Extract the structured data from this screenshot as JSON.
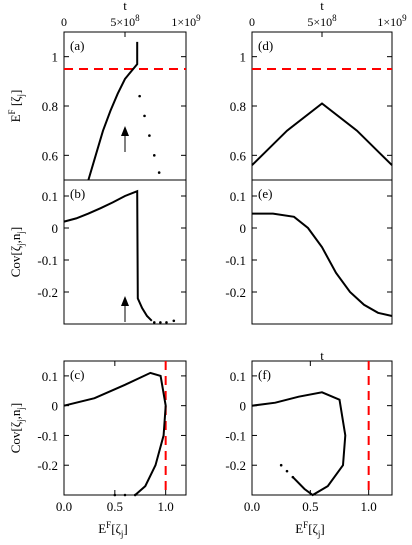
{
  "chart_data": [
    {
      "panel_label": "(a)",
      "type": "line",
      "xlabel_top": "t",
      "top_ticks": [
        0,
        "5×10^8",
        "1×10^9"
      ],
      "ylabel": "E^F[ζ_j]",
      "yticks": [
        0.6,
        0.8,
        1
      ],
      "ylim": [
        0.5,
        1.1
      ],
      "xlim": [
        0,
        1000000000
      ],
      "reference_line": {
        "y": 0.95,
        "color": "#ff0000",
        "style": "dashed"
      },
      "annotations": [
        "up-arrow at t = 5×10^8"
      ],
      "series": [
        {
          "points": [
            [
              200000000,
              0.5
            ],
            [
              260000000,
              0.6
            ],
            [
              320000000,
              0.7
            ],
            [
              380000000,
              0.78
            ],
            [
              440000000,
              0.85
            ],
            [
              500000000,
              0.91
            ],
            [
              600000000,
              0.97
            ],
            [
              600000000,
              1.06
            ]
          ]
        },
        {
          "style": "dotted",
          "points": [
            [
              620000000,
              0.84
            ],
            [
              660000000,
              0.76
            ],
            [
              700000000,
              0.68
            ],
            [
              740000000,
              0.6
            ],
            [
              780000000,
              0.53
            ]
          ]
        }
      ]
    },
    {
      "panel_label": "(b)",
      "type": "line",
      "ylabel": "Cov[ζ_j,n_j]",
      "yticks": [
        -0.2,
        -0.1,
        0,
        0.1
      ],
      "ylim": [
        -0.3,
        0.15
      ],
      "xlim": [
        0,
        1000000000
      ],
      "annotations": [
        "up-arrow at t = 5×10^8"
      ],
      "series": [
        {
          "points": [
            [
              0,
              0.02
            ],
            [
              100000000,
              0.03
            ],
            [
              200000000,
              0.045
            ],
            [
              300000000,
              0.062
            ],
            [
              400000000,
              0.08
            ],
            [
              500000000,
              0.1
            ],
            [
              600000000,
              0.115
            ],
            [
              605000000,
              -0.22
            ],
            [
              640000000,
              -0.25
            ],
            [
              680000000,
              -0.275
            ],
            [
              720000000,
              -0.29
            ]
          ]
        },
        {
          "style": "dotted",
          "points": [
            [
              740000000,
              -0.295
            ],
            [
              790000000,
              -0.295
            ],
            [
              840000000,
              -0.295
            ],
            [
              900000000,
              -0.29
            ]
          ]
        }
      ]
    },
    {
      "panel_label": "(c)",
      "type": "line",
      "xlabel": "E^F[ζ_j]",
      "ylabel": "Cov[ζ_j,n_j]",
      "xticks": [
        0.0,
        0.5,
        1.0
      ],
      "yticks": [
        -0.2,
        -0.1,
        0,
        0.1
      ],
      "xlim": [
        0.0,
        1.2
      ],
      "ylim": [
        -0.3,
        0.15
      ],
      "reference_line": {
        "x": 1.0,
        "color": "#ff0000",
        "style": "dashed"
      },
      "series": [
        {
          "points": [
            [
              0.0,
              0.0
            ],
            [
              0.3,
              0.025
            ],
            [
              0.6,
              0.07
            ],
            [
              0.85,
              0.11
            ],
            [
              0.95,
              0.1
            ],
            [
              1.0,
              0.0
            ],
            [
              0.98,
              -0.1
            ],
            [
              0.9,
              -0.2
            ],
            [
              0.8,
              -0.27
            ],
            [
              0.7,
              -0.3
            ]
          ]
        },
        {
          "style": "dotted",
          "points": [
            [
              0.5,
              -0.3
            ],
            [
              0.6,
              -0.3
            ],
            [
              0.7,
              -0.3
            ]
          ]
        }
      ]
    },
    {
      "panel_label": "(d)",
      "type": "line",
      "xlabel_top": "t",
      "top_ticks": [
        0,
        "5×10^8",
        "1×10^9"
      ],
      "yticks": [
        0.6,
        0.8,
        1
      ],
      "ylim": [
        0.5,
        1.1
      ],
      "xlim": [
        0,
        1000000000
      ],
      "reference_line": {
        "y": 0.95,
        "color": "#ff0000",
        "style": "dashed"
      },
      "series": [
        {
          "points": [
            [
              0,
              0.56
            ],
            [
              250000000,
              0.7
            ],
            [
              500000000,
              0.81
            ],
            [
              750000000,
              0.7
            ],
            [
              1000000000,
              0.56
            ]
          ]
        }
      ]
    },
    {
      "panel_label": "(e)",
      "type": "line",
      "xlabel": "t",
      "yticks": [
        -0.2,
        -0.1,
        0,
        0.1
      ],
      "ylim": [
        -0.3,
        0.15
      ],
      "xlim": [
        0,
        1000000000
      ],
      "series": [
        {
          "points": [
            [
              0,
              0.045
            ],
            [
              150000000,
              0.045
            ],
            [
              300000000,
              0.035
            ],
            [
              400000000,
              0.0
            ],
            [
              500000000,
              -0.06
            ],
            [
              600000000,
              -0.14
            ],
            [
              700000000,
              -0.2
            ],
            [
              800000000,
              -0.24
            ],
            [
              900000000,
              -0.265
            ],
            [
              1000000000,
              -0.275
            ]
          ]
        }
      ]
    },
    {
      "panel_label": "(f)",
      "type": "line",
      "xlabel": "E^F[ζ_j]",
      "xticks": [
        0.0,
        0.5,
        1.0
      ],
      "yticks": [
        -0.2,
        -0.1,
        0,
        0.1
      ],
      "xlim": [
        0.0,
        1.2
      ],
      "ylim": [
        -0.3,
        0.15
      ],
      "reference_line": {
        "x": 1.0,
        "color": "#ff0000",
        "style": "dashed"
      },
      "series": [
        {
          "points": [
            [
              0.0,
              0.0
            ],
            [
              0.2,
              0.01
            ],
            [
              0.4,
              0.03
            ],
            [
              0.6,
              0.045
            ],
            [
              0.75,
              0.02
            ],
            [
              0.8,
              -0.1
            ],
            [
              0.78,
              -0.2
            ],
            [
              0.65,
              -0.27
            ],
            [
              0.52,
              -0.3
            ],
            [
              0.45,
              -0.28
            ],
            [
              0.35,
              -0.24
            ]
          ]
        },
        {
          "style": "dotted",
          "points": [
            [
              0.35,
              -0.24
            ],
            [
              0.3,
              -0.22
            ],
            [
              0.25,
              -0.2
            ]
          ]
        }
      ]
    }
  ]
}
